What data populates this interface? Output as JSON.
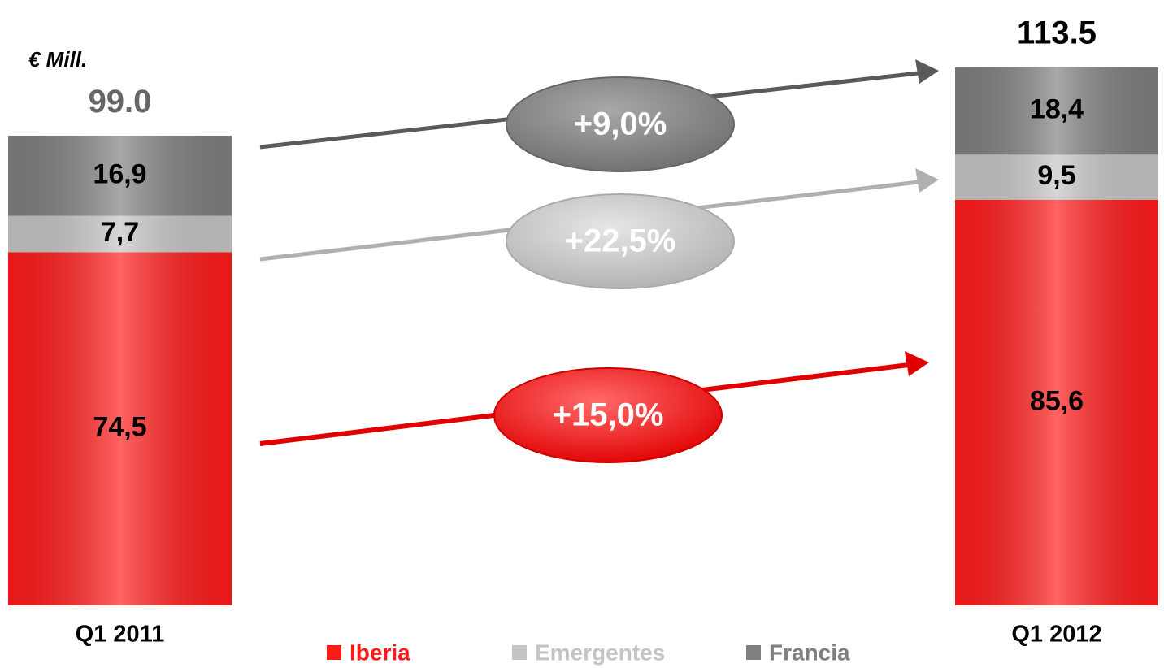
{
  "chart_data": {
    "type": "bar",
    "stacked": true,
    "unit_label": "€ Mill.",
    "categories": [
      "Q1 2011",
      "Q1 2012"
    ],
    "series": [
      {
        "name": "Iberia",
        "color": "#ff1a1a",
        "values": [
          74.5,
          85.6
        ],
        "value_labels": [
          "74,5",
          "85,6"
        ]
      },
      {
        "name": "Emergentes",
        "color": "#c4c4c4",
        "values": [
          7.7,
          9.5
        ],
        "value_labels": [
          "7,7",
          "9,5"
        ]
      },
      {
        "name": "Francia",
        "color": "#7f7f7f",
        "values": [
          16.9,
          18.4
        ],
        "value_labels": [
          "16,9",
          "18,4"
        ]
      }
    ],
    "totals": [
      99.0,
      113.5
    ],
    "total_labels": [
      "99.0",
      "113.5"
    ],
    "annotations": [
      "+9,0%",
      "+22,5%",
      "+15,0%"
    ]
  }
}
